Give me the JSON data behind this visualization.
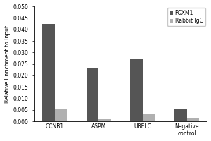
{
  "categories": [
    "CCNB1",
    "ASPM",
    "UBELC",
    "Negative\ncontrol"
  ],
  "foxm1_values": [
    0.0425,
    0.0235,
    0.027,
    0.0055
  ],
  "igg_values": [
    0.0055,
    0.001,
    0.0035,
    0.0012
  ],
  "foxm1_color": "#555555",
  "igg_color": "#b0b0b0",
  "ylabel": "Relative Enrichment to Input",
  "ylim": [
    0,
    0.05
  ],
  "yticks": [
    0.0,
    0.005,
    0.01,
    0.015,
    0.02,
    0.025,
    0.03,
    0.035,
    0.04,
    0.045,
    0.05
  ],
  "legend_labels": [
    "FOXM1",
    "Rabbit IgG"
  ],
  "bar_width": 0.28,
  "background_color": "#ffffff"
}
